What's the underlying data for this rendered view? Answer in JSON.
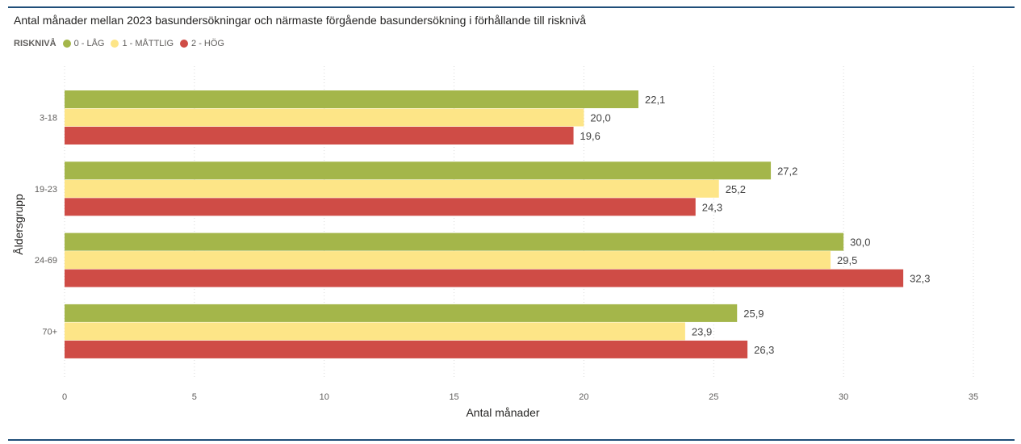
{
  "title": "Antal månader mellan 2023 basundersökningar och närmaste förgående basundersökning i förhållande till risknivå",
  "legend": {
    "title": "RISKNIVÅ",
    "items": [
      {
        "label": "0 - LÅG",
        "color": "#a4b64a"
      },
      {
        "label": "1 - MÅTTLIG",
        "color": "#fde587"
      },
      {
        "label": "2 - HÖG",
        "color": "#cf4c46"
      }
    ]
  },
  "chart_data": {
    "type": "bar",
    "orientation": "horizontal",
    "title": "Antal månader mellan 2023 basundersökningar och närmaste förgående basundersökning i förhållande till risknivå",
    "xlabel": "Antal månader",
    "ylabel": "Åldersgrupp",
    "categories": [
      "3-18",
      "19-23",
      "24-69",
      "70+"
    ],
    "xlim": [
      0,
      35
    ],
    "xticks": [
      0,
      5,
      10,
      15,
      20,
      25,
      30,
      35
    ],
    "grid": "vertical dotted",
    "legend_position": "top-left",
    "series": [
      {
        "name": "0 - LÅG",
        "color": "#a4b64a",
        "values": [
          22.1,
          27.2,
          30.0,
          25.9
        ],
        "labels": [
          "22,1",
          "27,2",
          "30,0",
          "25,9"
        ]
      },
      {
        "name": "1 - MÅTTLIG",
        "color": "#fde587",
        "values": [
          20.0,
          25.2,
          29.5,
          23.9
        ],
        "labels": [
          "20,0",
          "25,2",
          "29,5",
          "23,9"
        ]
      },
      {
        "name": "2 - HÖG",
        "color": "#cf4c46",
        "values": [
          19.6,
          24.3,
          32.3,
          26.3
        ],
        "labels": [
          "19,6",
          "24,3",
          "32,3",
          "26,3"
        ]
      }
    ]
  }
}
